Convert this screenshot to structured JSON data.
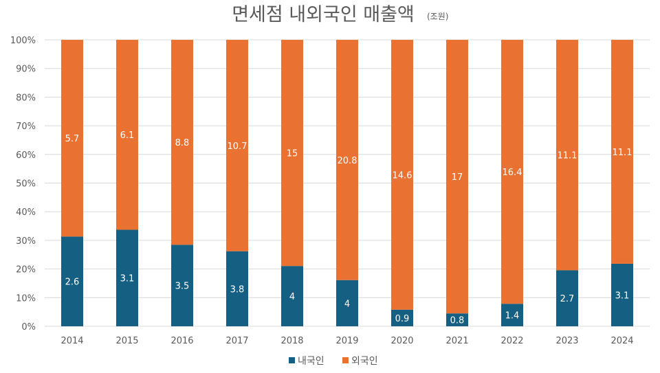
{
  "chart_data": {
    "type": "bar",
    "stacked": "percent",
    "title": "면세점 내외국인 매출액",
    "subtitle": "(조원)",
    "categories": [
      "2014",
      "2015",
      "2016",
      "2017",
      "2018",
      "2019",
      "2020",
      "2021",
      "2022",
      "2023",
      "2024"
    ],
    "series": [
      {
        "name": "내국인",
        "color": "#156082",
        "values": [
          2.6,
          3.1,
          3.5,
          3.8,
          4,
          4,
          0.9,
          0.8,
          1.4,
          2.7,
          3.1
        ]
      },
      {
        "name": "외국인",
        "color": "#E97132",
        "values": [
          5.7,
          6.1,
          8.8,
          10.7,
          15,
          20.8,
          14.6,
          17,
          16.4,
          11.1,
          11.1
        ]
      }
    ],
    "ylim": [
      0,
      100
    ],
    "yticks": [
      "0%",
      "10%",
      "20%",
      "30%",
      "40%",
      "50%",
      "60%",
      "70%",
      "80%",
      "90%",
      "100%"
    ],
    "grid": true,
    "legend": "bottom"
  }
}
